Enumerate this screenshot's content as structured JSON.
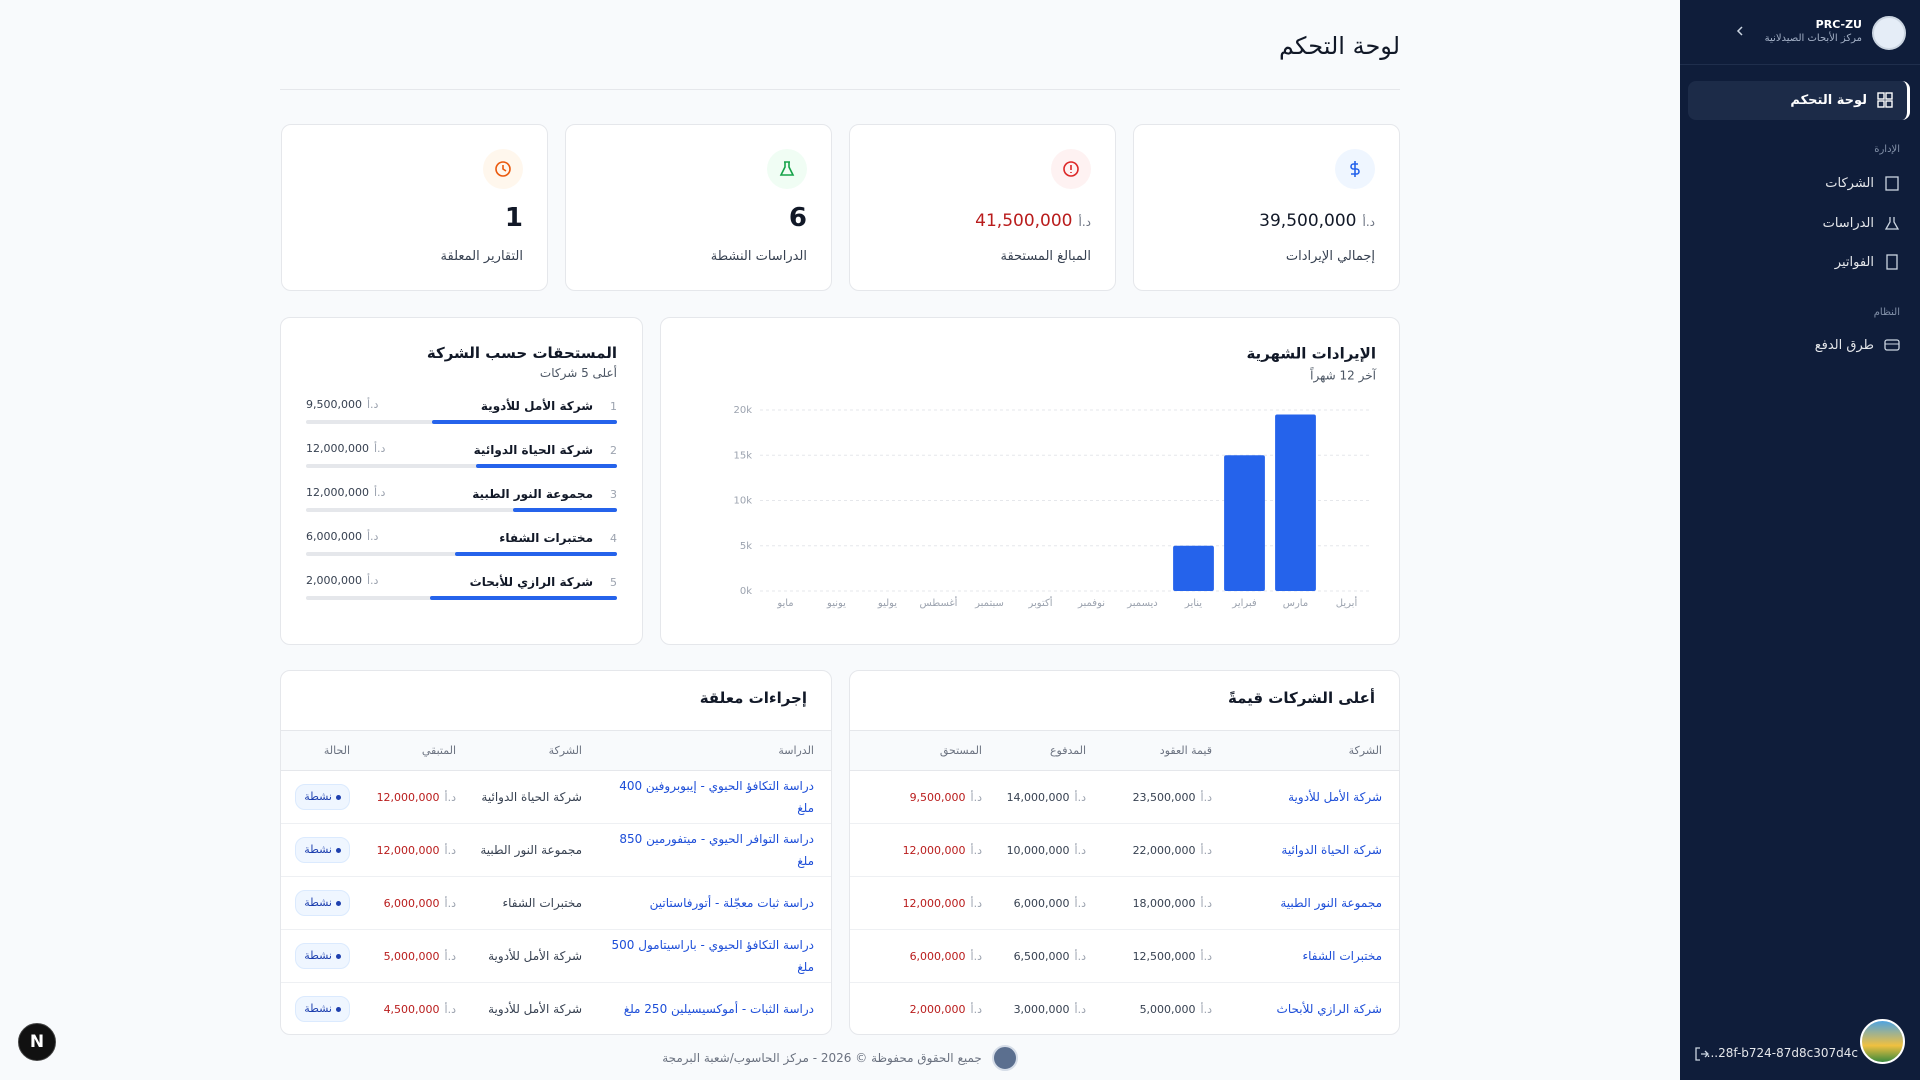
{
  "sidebar": {
    "brand": "PRC-ZU",
    "subtitle": "مركز الأبحاث الصيدلانية",
    "active": "لوحة التحكم",
    "sections": [
      {
        "title": "الإدارة",
        "items": [
          "الشركات",
          "الدراسات",
          "الفواتير"
        ]
      },
      {
        "title": "النظام",
        "items": [
          "طرق الدفع"
        ]
      }
    ],
    "session": "...28f-b724-87d8c307d4c"
  },
  "header": {
    "title": "لوحة التحكم"
  },
  "stats": [
    {
      "label": "إجمالي الإيرادات",
      "value": "39,500,000",
      "currency": "د.أ"
    },
    {
      "label": "المبالغ المستحقة",
      "value": "41,500,000",
      "currency": "د.أ"
    },
    {
      "label": "الدراسات النشطة",
      "value": "6"
    },
    {
      "label": "التقارير المعلقة",
      "value": "1"
    }
  ],
  "revenue_chart": {
    "type": "bar",
    "title": "الإيرادات الشهرية",
    "subtitle": "آخر 12 شهراً",
    "categories": [
      "مايو",
      "يونيو",
      "يوليو",
      "أغسطس",
      "سبتمبر",
      "أكتوبر",
      "نوفمبر",
      "ديسمبر",
      "يناير",
      "فبراير",
      "مارس",
      "أبريل"
    ],
    "values": [
      0,
      0,
      0,
      0,
      0,
      0,
      0,
      0,
      5000,
      15000,
      19500,
      0
    ],
    "color": "#2563eb",
    "ylim": [
      0,
      20000
    ],
    "yticks": [
      {
        "value": 0,
        "label": "0k"
      },
      {
        "value": 5000,
        "label": "5k"
      },
      {
        "value": 10000,
        "label": "10k"
      },
      {
        "value": 15000,
        "label": "15k"
      },
      {
        "value": 20000,
        "label": "20k"
      }
    ],
    "grid": true
  },
  "dues": {
    "title": "المستحقات حسب الشركة",
    "subtitle": "أعلى 5 شركات",
    "currency": "د.أ",
    "items": [
      {
        "rank": "1",
        "name": "شركة الأمل للأدوية",
        "amount": "9,500,000"
      },
      {
        "rank": "2",
        "name": "شركة الحياة الدوائية",
        "amount": "12,000,000"
      },
      {
        "rank": "3",
        "name": "مجموعة النور الطبية",
        "amount": "12,000,000"
      },
      {
        "rank": "4",
        "name": "مختبرات الشفاء",
        "amount": "6,000,000"
      },
      {
        "rank": "5",
        "name": "شركة الرازي للأبحاث",
        "amount": "2,000,000"
      }
    ]
  },
  "top_companies": {
    "title": "أعلى الشركات قيمةً",
    "currency": "د.أ",
    "columns": [
      "الشركة",
      "قيمة العقود",
      "المدفوع",
      "المستحق"
    ],
    "rows": [
      [
        "شركة الأمل للأدوية",
        "23,500,000",
        "14,000,000",
        "9,500,000"
      ],
      [
        "شركة الحياة الدوائية",
        "22,000,000",
        "10,000,000",
        "12,000,000"
      ],
      [
        "مجموعة النور الطبية",
        "18,000,000",
        "6,000,000",
        "12,000,000"
      ],
      [
        "مختبرات الشفاء",
        "12,500,000",
        "6,500,000",
        "6,000,000"
      ],
      [
        "شركة الرازي للأبحاث",
        "5,000,000",
        "3,000,000",
        "2,000,000"
      ]
    ]
  },
  "pending": {
    "title": "إجراءات معلقة",
    "currency": "د.أ",
    "columns": [
      "الدراسة",
      "الشركة",
      "المتبقي",
      "الحالة"
    ],
    "rows": [
      [
        "دراسة التكافؤ الحيوي - إيبوبروفين 400 ملغ",
        "شركة الحياة الدوائية",
        "12,000,000",
        "نشطة"
      ],
      [
        "دراسة التوافر الحيوي - ميتفورمين 850 ملغ",
        "مجموعة النور الطبية",
        "12,000,000",
        "نشطة"
      ],
      [
        "دراسة ثبات معجّلة - أتورفاستاتين",
        "مختبرات الشفاء",
        "6,000,000",
        "نشطة"
      ],
      [
        "دراسة التكافؤ الحيوي - باراسيتامول 500 ملغ",
        "شركة الأمل للأدوية",
        "5,000,000",
        "نشطة"
      ],
      [
        "دراسة الثبات - أموكسيسيلين 250 ملغ",
        "شركة الأمل للأدوية",
        "4,500,000",
        "نشطة"
      ]
    ]
  },
  "footer": {
    "text": "جميع الحقوق محفوظة © 2026 - مركز الحاسوب/شعبة البرمجة"
  }
}
